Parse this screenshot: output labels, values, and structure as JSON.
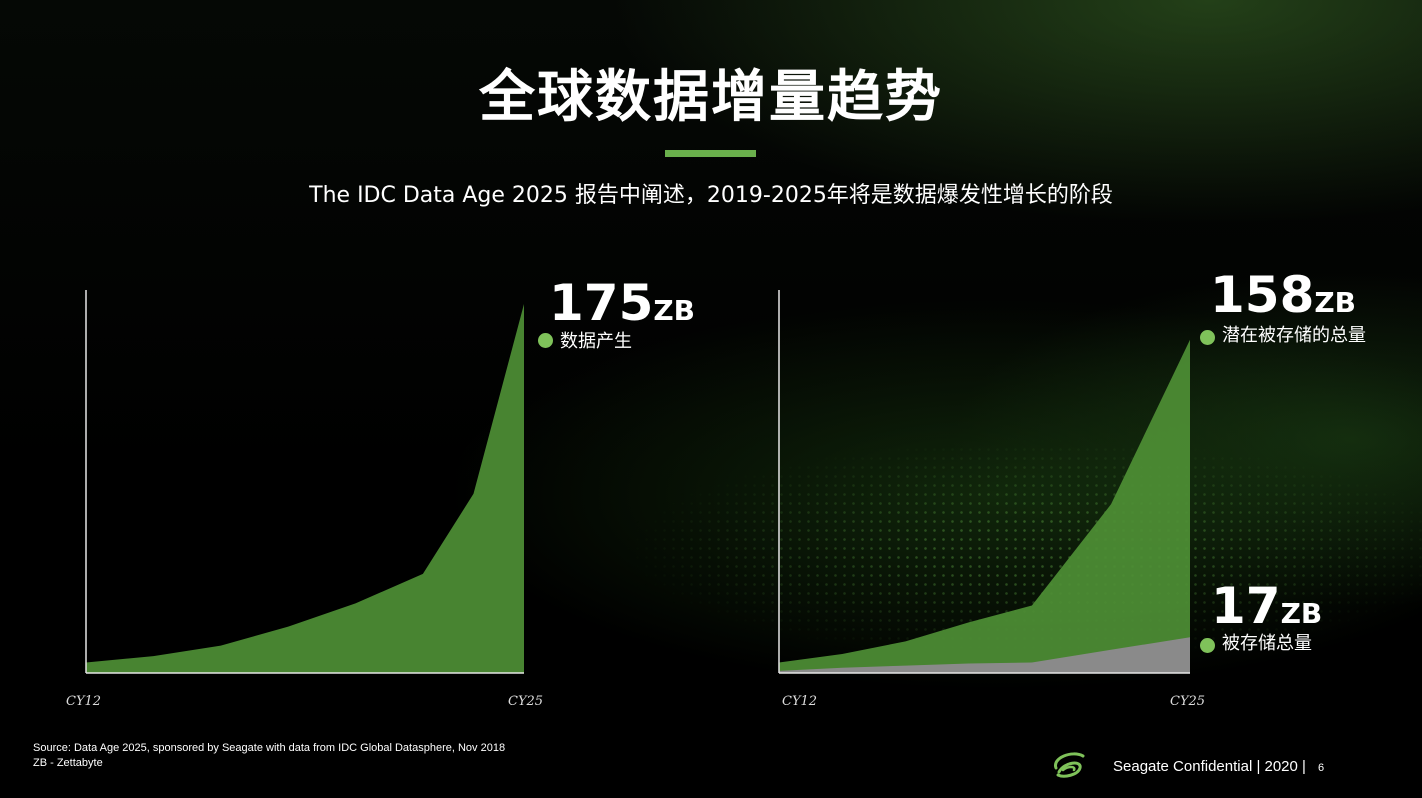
{
  "title": "全球数据增量趋势",
  "subtitle": "The IDC Data Age 2025 报告中阐述，2019-2025年将是数据爆发性增长的阶段",
  "colors": {
    "accent": "#6ab04c",
    "series_green": "#4e8f35",
    "series_gray": "#8a8a8a",
    "background": "#000000"
  },
  "chart_data": [
    {
      "type": "area",
      "x_start_label": "CY12",
      "x_end_label": "CY25",
      "ylim": [
        0,
        175
      ],
      "series": [
        {
          "name": "数据产生",
          "x": [
            0,
            2,
            4,
            6,
            8,
            10,
            11.5,
            13
          ],
          "values": [
            5,
            8,
            13,
            22,
            33,
            47,
            85,
            175
          ]
        }
      ],
      "annotation": {
        "value": "175",
        "unit": "ZB",
        "label": "数据产生"
      }
    },
    {
      "type": "area",
      "x_start_label": "CY12",
      "x_end_label": "CY25",
      "ylim": [
        0,
        175
      ],
      "series": [
        {
          "name": "潜在被存储的总量",
          "x": [
            0,
            2,
            4,
            6,
            8,
            10.5,
            13
          ],
          "values": [
            5,
            9,
            15,
            24,
            32,
            80,
            158
          ]
        },
        {
          "name": "被存储总量",
          "x": [
            0,
            2,
            4,
            6,
            8,
            10.5,
            13
          ],
          "values": [
            1,
            2.5,
            3.5,
            4.5,
            5,
            11,
            17
          ]
        }
      ],
      "annotations": [
        {
          "value": "158",
          "unit": "ZB",
          "label": "潜在被存储的总量"
        },
        {
          "value": "17",
          "unit": "ZB",
          "label": "被存储总量"
        }
      ]
    }
  ],
  "source_lines": [
    "Source: Data Age 2025, sponsored by Seagate with data from IDC Global Datasphere, Nov 2018",
    "ZB - Zettabyte"
  ],
  "footer": {
    "text": "Seagate Confidential  |  2020  |",
    "page": "6",
    "logo": "seagate-logo"
  }
}
